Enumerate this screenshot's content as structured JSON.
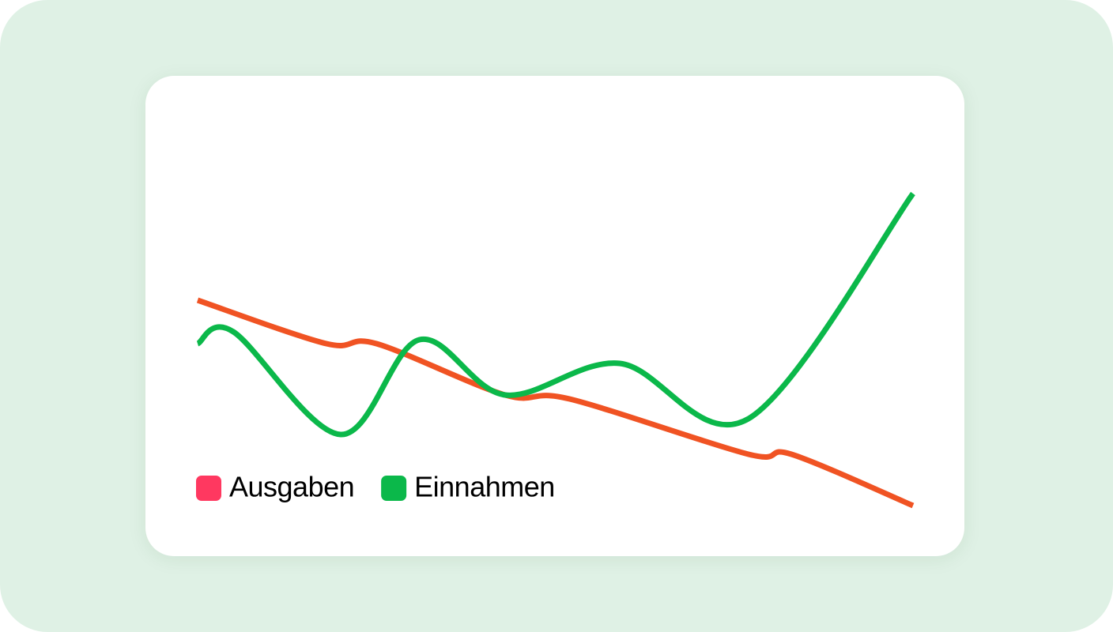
{
  "chart_data": {
    "type": "line",
    "xlim": [
      0,
      100
    ],
    "ylim": [
      0,
      100
    ],
    "grid": false,
    "legend": "bottom-left",
    "series": [
      {
        "name": "Ausgaben",
        "color": "#f05323",
        "marker_color": "#ff3860",
        "x": [
          0,
          18,
          25,
          43,
          52,
          77,
          83,
          100
        ],
        "values": [
          64,
          53,
          53,
          40,
          39,
          25,
          25,
          12
        ]
      },
      {
        "name": "Einnahmen",
        "color": "#0bb84a",
        "marker_color": "#0bb84a",
        "x": [
          0,
          5,
          20,
          31,
          43,
          59,
          77,
          100
        ],
        "values": [
          53,
          56,
          30,
          54,
          40,
          48,
          34,
          91
        ]
      }
    ]
  }
}
